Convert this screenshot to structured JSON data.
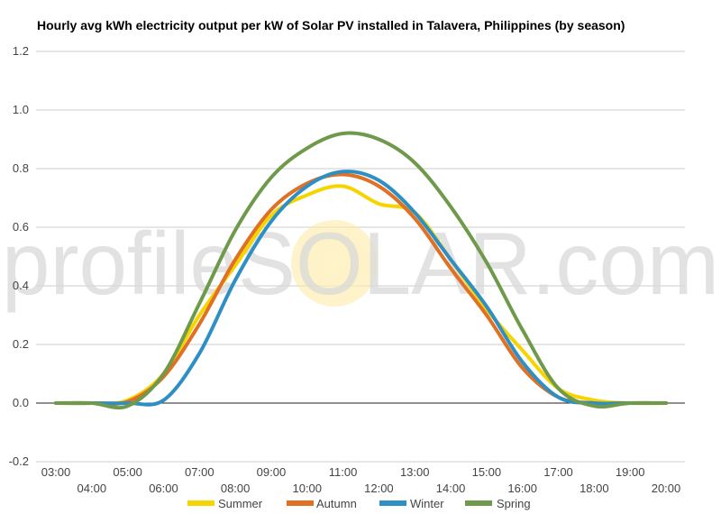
{
  "chart_data": {
    "type": "line",
    "title": "Hourly avg kWh electricity output per kW of Solar PV installed in Talavera, Philippines (by season)",
    "xlabel": "",
    "ylabel": "",
    "x": [
      "03:00",
      "04:00",
      "05:00",
      "06:00",
      "07:00",
      "08:00",
      "09:00",
      "10:00",
      "11:00",
      "12:00",
      "13:00",
      "14:00",
      "15:00",
      "16:00",
      "17:00",
      "18:00",
      "19:00",
      "20:00"
    ],
    "ylim": [
      -0.2,
      1.2
    ],
    "yticks": [
      "-0.2",
      "0.0",
      "0.2",
      "0.4",
      "0.6",
      "0.8",
      "1.0",
      "1.2"
    ],
    "grid": true,
    "legend_position": "bottom",
    "series": [
      {
        "name": "Summer",
        "color": "#f5d400",
        "values": [
          0,
          0,
          0.01,
          0.1,
          0.3,
          0.47,
          0.64,
          0.71,
          0.74,
          0.68,
          0.65,
          0.49,
          0.32,
          0.18,
          0.05,
          0.01,
          0,
          0
        ]
      },
      {
        "name": "Autumn",
        "color": "#e07024",
        "values": [
          0,
          0,
          0.005,
          0.09,
          0.27,
          0.49,
          0.66,
          0.75,
          0.78,
          0.74,
          0.63,
          0.46,
          0.3,
          0.12,
          0.02,
          0,
          0,
          0
        ]
      },
      {
        "name": "Winter",
        "color": "#2e8fc4",
        "values": [
          0,
          0,
          0,
          0.01,
          0.17,
          0.42,
          0.62,
          0.74,
          0.79,
          0.76,
          0.65,
          0.49,
          0.33,
          0.14,
          0.02,
          0,
          0,
          0
        ]
      },
      {
        "name": "Spring",
        "color": "#6f9a4c",
        "values": [
          0,
          0,
          -0.01,
          0.1,
          0.34,
          0.59,
          0.77,
          0.87,
          0.92,
          0.9,
          0.82,
          0.67,
          0.48,
          0.25,
          0.05,
          -0.01,
          0,
          0
        ]
      }
    ]
  },
  "watermark": {
    "text": "profileSOLAR.com"
  }
}
